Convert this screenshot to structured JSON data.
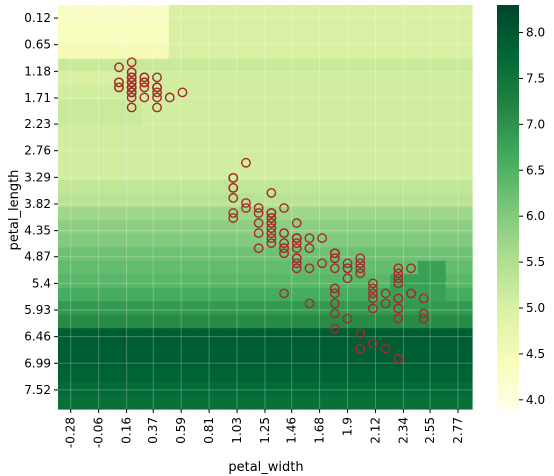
{
  "chart_data": {
    "type": "heatmap",
    "title": "",
    "xlabel": "petal_width",
    "ylabel": "petal_length",
    "x_tick_labels": [
      "-0.28",
      "-0.06",
      "0.16",
      "0.37",
      "0.59",
      "0.81",
      "1.03",
      "1.25",
      "1.46",
      "1.68",
      "1.9",
      "2.12",
      "2.34",
      "2.55",
      "2.77"
    ],
    "y_tick_labels": [
      "0.12",
      "0.65",
      "1.18",
      "1.71",
      "2.23",
      "2.76",
      "3.29",
      "3.82",
      "4.35",
      "4.87",
      "5.4",
      "5.93",
      "6.46",
      "6.99",
      "7.52"
    ],
    "xlim": [
      -0.38,
      2.88
    ],
    "ylim": [
      7.9,
      -0.14
    ],
    "colorbar": {
      "range": [
        3.9,
        8.3
      ],
      "ticks": [
        "4.0",
        "4.5",
        "5.0",
        "5.5",
        "6.0",
        "6.5",
        "7.0",
        "7.5",
        "8.0"
      ],
      "colormap": [
        "#ffffe5",
        "#f7fcb9",
        "#d9f0a3",
        "#addd8e",
        "#78c679",
        "#41ab5d",
        "#238443",
        "#006837",
        "#004529"
      ]
    },
    "grid": true,
    "heatmap_x_start": -0.38,
    "heatmap_x_step": 0.109,
    "heatmap_y_start": -0.14,
    "heatmap_y_step": 0.268,
    "heatmap_values": [
      [
        4.3,
        4.3,
        4.3,
        4.3,
        4.3,
        4.3,
        4.3,
        4.3,
        5.0,
        5.0,
        5.0,
        5.0,
        5.0,
        5.0,
        5.0,
        5.0,
        5.0,
        5.0,
        5.0,
        5.0,
        5.0,
        5.0,
        5.0,
        5.0,
        5.0,
        5.0,
        5.0,
        5.0,
        5.0,
        5.0
      ],
      [
        4.4,
        4.4,
        4.4,
        4.4,
        4.4,
        4.4,
        4.4,
        4.4,
        5.0,
        5.0,
        5.0,
        5.0,
        5.0,
        5.0,
        5.0,
        5.0,
        5.0,
        5.0,
        5.0,
        5.0,
        5.0,
        5.0,
        5.0,
        5.0,
        5.0,
        5.0,
        5.0,
        5.0,
        5.0,
        5.0
      ],
      [
        4.4,
        4.4,
        4.4,
        4.4,
        4.4,
        4.4,
        4.4,
        4.4,
        5.0,
        5.0,
        5.0,
        5.0,
        5.0,
        5.0,
        5.0,
        5.0,
        5.0,
        5.0,
        5.0,
        5.0,
        5.0,
        5.0,
        5.0,
        5.0,
        5.0,
        5.0,
        5.0,
        5.0,
        5.0,
        5.0
      ],
      [
        4.5,
        4.5,
        4.5,
        4.5,
        4.5,
        4.5,
        4.5,
        4.5,
        5.0,
        5.0,
        5.0,
        5.0,
        5.0,
        5.0,
        5.0,
        5.0,
        5.0,
        5.0,
        5.0,
        5.0,
        5.0,
        5.0,
        5.0,
        5.0,
        5.0,
        5.0,
        5.0,
        5.0,
        5.0,
        5.0
      ],
      [
        5.2,
        5.2,
        5.2,
        5.2,
        5.2,
        5.2,
        5.2,
        5.2,
        5.2,
        5.2,
        5.2,
        5.2,
        5.2,
        5.2,
        5.2,
        5.2,
        5.2,
        5.2,
        5.2,
        5.2,
        5.2,
        5.2,
        5.2,
        5.2,
        5.2,
        5.2,
        5.2,
        5.2,
        5.2,
        5.2
      ],
      [
        5.0,
        5.0,
        5.0,
        5.0,
        5.0,
        5.0,
        5.1,
        5.1,
        5.1,
        5.1,
        5.1,
        5.1,
        5.1,
        5.1,
        5.1,
        5.1,
        5.1,
        5.1,
        5.1,
        5.1,
        5.1,
        5.1,
        5.1,
        5.1,
        5.1,
        5.1,
        5.1,
        5.1,
        5.1,
        5.1
      ],
      [
        5.1,
        5.1,
        5.1,
        5.1,
        5.1,
        5.1,
        5.1,
        5.1,
        5.1,
        5.1,
        5.1,
        5.1,
        5.1,
        5.1,
        5.1,
        5.1,
        5.1,
        5.1,
        5.1,
        5.1,
        5.1,
        5.1,
        5.1,
        5.1,
        5.1,
        5.1,
        5.1,
        5.1,
        5.1,
        5.1
      ],
      [
        5.2,
        5.2,
        5.2,
        5.2,
        5.2,
        5.2,
        5.1,
        5.1,
        5.1,
        5.1,
        5.1,
        5.1,
        5.1,
        5.1,
        5.1,
        5.1,
        5.1,
        5.1,
        5.1,
        5.1,
        5.1,
        5.1,
        5.1,
        5.1,
        5.1,
        5.1,
        5.1,
        5.1,
        5.1,
        5.1
      ],
      [
        5.2,
        5.2,
        5.2,
        5.2,
        5.2,
        5.2,
        5.1,
        5.1,
        5.1,
        5.1,
        5.1,
        5.1,
        5.1,
        5.1,
        5.1,
        5.1,
        5.1,
        5.1,
        5.1,
        5.1,
        5.1,
        5.1,
        5.1,
        5.1,
        5.1,
        5.1,
        5.1,
        5.1,
        5.1,
        5.1
      ],
      [
        5.1,
        5.1,
        5.1,
        5.1,
        5.1,
        5.1,
        5.1,
        5.1,
        5.1,
        5.1,
        5.1,
        5.1,
        5.1,
        5.1,
        5.1,
        5.1,
        5.1,
        5.1,
        5.1,
        5.1,
        5.1,
        5.1,
        5.1,
        5.1,
        5.1,
        5.1,
        5.1,
        5.1,
        5.1,
        5.1
      ],
      [
        5.1,
        5.1,
        5.1,
        5.1,
        5.1,
        5.1,
        5.1,
        5.1,
        5.1,
        5.1,
        5.1,
        5.1,
        5.1,
        5.1,
        5.1,
        5.1,
        5.1,
        5.1,
        5.1,
        5.1,
        5.1,
        5.1,
        5.1,
        5.1,
        5.1,
        5.1,
        5.1,
        5.1,
        5.1,
        5.1
      ],
      [
        5.1,
        5.1,
        5.1,
        5.1,
        5.1,
        5.1,
        5.1,
        5.1,
        5.1,
        5.1,
        5.1,
        5.1,
        5.1,
        5.1,
        5.1,
        5.1,
        5.1,
        5.1,
        5.1,
        5.1,
        5.1,
        5.1,
        5.1,
        5.1,
        5.1,
        5.1,
        5.1,
        5.1,
        5.1,
        5.1
      ],
      [
        5.1,
        5.1,
        5.1,
        5.1,
        5.1,
        5.1,
        5.1,
        5.1,
        5.1,
        5.1,
        5.1,
        5.1,
        5.1,
        5.1,
        5.1,
        5.1,
        5.1,
        5.1,
        5.1,
        5.1,
        5.1,
        5.1,
        5.1,
        5.1,
        5.1,
        5.1,
        5.1,
        5.1,
        5.1,
        5.1
      ],
      [
        5.3,
        5.3,
        5.3,
        5.3,
        5.3,
        5.3,
        5.3,
        5.3,
        5.3,
        5.3,
        5.3,
        5.3,
        5.3,
        5.3,
        5.3,
        5.3,
        5.3,
        5.3,
        5.3,
        5.3,
        5.3,
        5.3,
        5.3,
        5.3,
        5.3,
        5.3,
        5.3,
        5.3,
        5.3,
        5.3
      ],
      [
        5.4,
        5.4,
        5.4,
        5.4,
        5.4,
        5.4,
        5.4,
        5.4,
        5.4,
        5.4,
        5.4,
        5.4,
        5.4,
        5.4,
        5.4,
        5.4,
        5.4,
        5.4,
        5.4,
        5.4,
        5.4,
        5.4,
        5.4,
        5.4,
        5.4,
        5.4,
        5.4,
        5.4,
        5.4,
        5.4
      ],
      [
        5.7,
        5.7,
        5.7,
        5.7,
        5.7,
        5.7,
        5.7,
        5.7,
        5.7,
        5.7,
        5.7,
        5.7,
        5.7,
        5.7,
        5.7,
        5.7,
        5.7,
        5.7,
        5.7,
        5.7,
        5.7,
        5.7,
        5.7,
        5.7,
        5.7,
        5.7,
        5.7,
        5.7,
        5.7,
        5.7
      ],
      [
        5.9,
        5.9,
        5.9,
        5.9,
        5.9,
        5.9,
        5.9,
        5.9,
        5.9,
        5.9,
        5.9,
        5.9,
        5.9,
        5.9,
        5.9,
        5.9,
        5.9,
        5.9,
        5.9,
        5.9,
        5.9,
        5.9,
        5.9,
        5.9,
        5.9,
        5.9,
        5.9,
        5.9,
        5.9,
        5.9
      ],
      [
        6.0,
        6.0,
        6.0,
        6.0,
        6.0,
        6.0,
        6.0,
        6.0,
        6.0,
        6.0,
        6.0,
        6.0,
        6.0,
        6.0,
        6.0,
        6.0,
        6.0,
        6.0,
        6.0,
        6.0,
        6.0,
        6.0,
        6.0,
        6.0,
        6.0,
        6.0,
        6.0,
        6.0,
        6.0,
        6.0
      ],
      [
        6.2,
        6.2,
        6.2,
        6.2,
        6.2,
        6.2,
        6.2,
        6.2,
        6.2,
        6.2,
        6.2,
        6.2,
        6.2,
        6.2,
        6.2,
        6.2,
        6.2,
        6.2,
        6.2,
        6.2,
        6.2,
        6.2,
        6.2,
        6.2,
        6.2,
        6.2,
        6.2,
        6.2,
        6.2,
        6.2
      ],
      [
        6.3,
        6.3,
        6.3,
        6.3,
        6.3,
        6.3,
        6.3,
        6.3,
        6.3,
        6.3,
        6.3,
        6.3,
        6.3,
        6.3,
        6.3,
        6.3,
        6.3,
        6.3,
        6.3,
        6.3,
        6.3,
        6.3,
        6.3,
        6.3,
        6.3,
        6.3,
        6.8,
        6.8,
        6.3,
        6.3
      ],
      [
        6.4,
        6.4,
        6.4,
        6.4,
        6.4,
        6.4,
        6.4,
        6.4,
        6.4,
        6.4,
        6.4,
        6.4,
        6.4,
        6.4,
        6.4,
        6.4,
        6.4,
        6.4,
        6.4,
        6.4,
        6.4,
        6.4,
        6.4,
        6.4,
        6.8,
        6.8,
        6.8,
        6.8,
        6.4,
        6.4
      ],
      [
        6.6,
        6.6,
        6.6,
        6.6,
        6.6,
        6.6,
        6.6,
        6.6,
        6.6,
        6.6,
        6.6,
        6.6,
        6.6,
        6.6,
        6.6,
        6.6,
        6.6,
        6.6,
        6.6,
        6.6,
        6.6,
        6.6,
        6.6,
        6.6,
        6.8,
        6.8,
        6.8,
        6.8,
        6.6,
        6.6
      ],
      [
        6.9,
        6.9,
        6.9,
        6.9,
        6.9,
        6.9,
        6.9,
        6.9,
        6.9,
        6.9,
        6.9,
        6.9,
        6.9,
        6.9,
        6.9,
        6.9,
        6.9,
        6.9,
        6.9,
        6.9,
        6.9,
        6.9,
        6.9,
        6.9,
        6.9,
        6.9,
        6.9,
        6.9,
        6.9,
        6.9
      ],
      [
        7.1,
        7.1,
        7.1,
        7.1,
        7.1,
        7.1,
        7.1,
        7.1,
        7.1,
        7.1,
        7.1,
        7.1,
        7.1,
        7.1,
        7.1,
        7.1,
        7.1,
        7.1,
        7.1,
        7.1,
        7.1,
        7.1,
        7.1,
        7.1,
        7.1,
        7.1,
        7.1,
        7.1,
        7.1,
        7.1
      ],
      [
        7.9,
        7.9,
        7.9,
        7.9,
        7.9,
        7.9,
        7.9,
        7.9,
        7.9,
        7.9,
        7.9,
        7.9,
        7.9,
        7.9,
        7.9,
        7.9,
        7.9,
        7.9,
        7.9,
        7.9,
        7.9,
        7.9,
        7.9,
        7.9,
        7.9,
        7.9,
        7.9,
        7.9,
        7.9,
        7.9
      ],
      [
        7.9,
        7.9,
        7.9,
        7.9,
        7.9,
        7.9,
        7.9,
        7.9,
        7.9,
        7.9,
        7.9,
        7.9,
        7.9,
        7.9,
        7.9,
        7.9,
        7.9,
        7.9,
        7.9,
        7.9,
        7.9,
        7.9,
        7.9,
        7.9,
        7.9,
        7.9,
        7.9,
        7.9,
        7.9,
        7.9
      ],
      [
        7.9,
        7.9,
        7.9,
        7.9,
        7.9,
        7.9,
        7.9,
        7.9,
        7.9,
        7.9,
        7.9,
        7.9,
        7.9,
        7.9,
        7.9,
        7.9,
        7.9,
        7.9,
        7.9,
        7.9,
        7.9,
        7.9,
        7.9,
        7.9,
        7.9,
        7.9,
        7.9,
        7.9,
        7.9,
        7.9
      ],
      [
        7.8,
        7.8,
        7.8,
        7.8,
        7.8,
        7.8,
        7.8,
        7.8,
        7.8,
        7.8,
        7.8,
        7.8,
        7.8,
        7.8,
        7.8,
        7.8,
        7.8,
        7.8,
        7.8,
        7.8,
        7.8,
        7.8,
        7.8,
        7.8,
        7.8,
        7.8,
        7.8,
        7.8,
        7.8,
        7.8
      ],
      [
        7.7,
        7.7,
        7.7,
        7.7,
        7.7,
        7.7,
        7.7,
        7.7,
        7.7,
        7.7,
        7.7,
        7.7,
        7.7,
        7.7,
        7.7,
        7.7,
        7.7,
        7.7,
        7.7,
        7.7,
        7.7,
        7.7,
        7.7,
        7.7,
        7.7,
        7.7,
        7.7,
        7.7,
        7.7,
        7.7
      ],
      [
        7.6,
        7.6,
        7.6,
        7.6,
        7.6,
        7.6,
        7.6,
        7.6,
        7.6,
        7.6,
        7.6,
        7.6,
        7.6,
        7.6,
        7.6,
        7.6,
        7.6,
        7.6,
        7.6,
        7.6,
        7.6,
        7.6,
        7.6,
        7.6,
        7.6,
        7.6,
        7.6,
        7.6,
        7.6,
        7.6
      ]
    ],
    "points": [
      [
        0.2,
        1.4
      ],
      [
        0.2,
        1.4
      ],
      [
        0.2,
        1.3
      ],
      [
        0.2,
        1.5
      ],
      [
        0.2,
        1.4
      ],
      [
        0.4,
        1.7
      ],
      [
        0.3,
        1.4
      ],
      [
        0.2,
        1.5
      ],
      [
        0.2,
        1.4
      ],
      [
        0.1,
        1.5
      ],
      [
        0.2,
        1.5
      ],
      [
        0.2,
        1.6
      ],
      [
        0.1,
        1.4
      ],
      [
        0.1,
        1.1
      ],
      [
        0.2,
        1.2
      ],
      [
        0.4,
        1.5
      ],
      [
        0.4,
        1.3
      ],
      [
        0.3,
        1.4
      ],
      [
        0.3,
        1.7
      ],
      [
        0.3,
        1.5
      ],
      [
        0.2,
        1.7
      ],
      [
        0.4,
        1.5
      ],
      [
        0.2,
        1.0
      ],
      [
        0.5,
        1.7
      ],
      [
        0.2,
        1.9
      ],
      [
        0.2,
        1.6
      ],
      [
        0.4,
        1.6
      ],
      [
        0.2,
        1.5
      ],
      [
        0.2,
        1.4
      ],
      [
        0.2,
        1.6
      ],
      [
        0.2,
        1.6
      ],
      [
        0.4,
        1.5
      ],
      [
        0.1,
        1.5
      ],
      [
        0.2,
        1.4
      ],
      [
        0.2,
        1.5
      ],
      [
        0.2,
        1.2
      ],
      [
        0.2,
        1.3
      ],
      [
        0.1,
        1.4
      ],
      [
        0.2,
        1.3
      ],
      [
        0.2,
        1.5
      ],
      [
        0.3,
        1.3
      ],
      [
        0.3,
        1.3
      ],
      [
        0.2,
        1.3
      ],
      [
        0.6,
        1.6
      ],
      [
        0.4,
        1.9
      ],
      [
        0.3,
        1.4
      ],
      [
        0.2,
        1.6
      ],
      [
        0.2,
        1.4
      ],
      [
        0.2,
        1.5
      ],
      [
        0.2,
        1.4
      ],
      [
        1.4,
        4.7
      ],
      [
        1.5,
        4.5
      ],
      [
        1.5,
        4.9
      ],
      [
        1.3,
        4.0
      ],
      [
        1.5,
        4.6
      ],
      [
        1.3,
        4.5
      ],
      [
        1.6,
        4.7
      ],
      [
        1.0,
        3.3
      ],
      [
        1.3,
        4.6
      ],
      [
        1.4,
        3.9
      ],
      [
        1.0,
        3.5
      ],
      [
        1.5,
        4.2
      ],
      [
        1.0,
        4.0
      ],
      [
        1.4,
        4.7
      ],
      [
        1.3,
        3.6
      ],
      [
        1.4,
        4.4
      ],
      [
        1.5,
        4.5
      ],
      [
        1.0,
        4.1
      ],
      [
        1.5,
        4.5
      ],
      [
        1.1,
        3.9
      ],
      [
        1.8,
        4.8
      ],
      [
        1.3,
        4.0
      ],
      [
        1.5,
        4.9
      ],
      [
        1.2,
        4.7
      ],
      [
        1.3,
        4.3
      ],
      [
        1.4,
        4.4
      ],
      [
        1.4,
        4.8
      ],
      [
        1.7,
        5.0
      ],
      [
        1.5,
        4.5
      ],
      [
        1.0,
        3.5
      ],
      [
        1.1,
        3.8
      ],
      [
        1.0,
        3.7
      ],
      [
        1.2,
        3.9
      ],
      [
        1.6,
        5.1
      ],
      [
        1.5,
        4.5
      ],
      [
        1.6,
        4.5
      ],
      [
        1.5,
        4.7
      ],
      [
        1.3,
        4.4
      ],
      [
        1.3,
        4.1
      ],
      [
        1.3,
        4.0
      ],
      [
        1.2,
        4.4
      ],
      [
        1.4,
        4.6
      ],
      [
        1.2,
        4.0
      ],
      [
        1.0,
        3.3
      ],
      [
        1.3,
        4.2
      ],
      [
        1.2,
        4.2
      ],
      [
        1.3,
        4.2
      ],
      [
        1.3,
        4.3
      ],
      [
        1.1,
        3.0
      ],
      [
        1.3,
        4.1
      ],
      [
        2.5,
        6.0
      ],
      [
        1.9,
        5.1
      ],
      [
        2.1,
        5.9
      ],
      [
        1.8,
        5.6
      ],
      [
        2.2,
        5.8
      ],
      [
        2.1,
        6.6
      ],
      [
        1.7,
        4.5
      ],
      [
        1.8,
        6.3
      ],
      [
        1.8,
        5.8
      ],
      [
        2.5,
        6.1
      ],
      [
        2.0,
        5.1
      ],
      [
        1.9,
        5.3
      ],
      [
        2.1,
        5.5
      ],
      [
        2.0,
        5.0
      ],
      [
        2.4,
        5.1
      ],
      [
        2.3,
        5.3
      ],
      [
        1.8,
        5.5
      ],
      [
        2.2,
        6.7
      ],
      [
        2.3,
        6.9
      ],
      [
        1.5,
        5.0
      ],
      [
        2.3,
        5.7
      ],
      [
        2.0,
        4.9
      ],
      [
        2.0,
        6.7
      ],
      [
        1.8,
        4.9
      ],
      [
        2.1,
        5.7
      ],
      [
        1.8,
        6.0
      ],
      [
        1.8,
        4.8
      ],
      [
        1.8,
        4.9
      ],
      [
        2.1,
        5.6
      ],
      [
        1.6,
        5.8
      ],
      [
        1.9,
        6.1
      ],
      [
        2.0,
        6.4
      ],
      [
        2.2,
        5.6
      ],
      [
        1.5,
        5.1
      ],
      [
        1.4,
        5.6
      ],
      [
        2.3,
        6.1
      ],
      [
        2.4,
        5.6
      ],
      [
        1.8,
        5.5
      ],
      [
        1.8,
        4.8
      ],
      [
        2.1,
        5.4
      ],
      [
        2.4,
        5.6
      ],
      [
        2.3,
        5.1
      ],
      [
        1.9,
        5.1
      ],
      [
        2.3,
        5.9
      ],
      [
        2.5,
        5.7
      ],
      [
        2.3,
        5.2
      ],
      [
        1.9,
        5.0
      ],
      [
        2.0,
        5.2
      ],
      [
        2.3,
        5.4
      ],
      [
        1.8,
        5.1
      ]
    ]
  }
}
